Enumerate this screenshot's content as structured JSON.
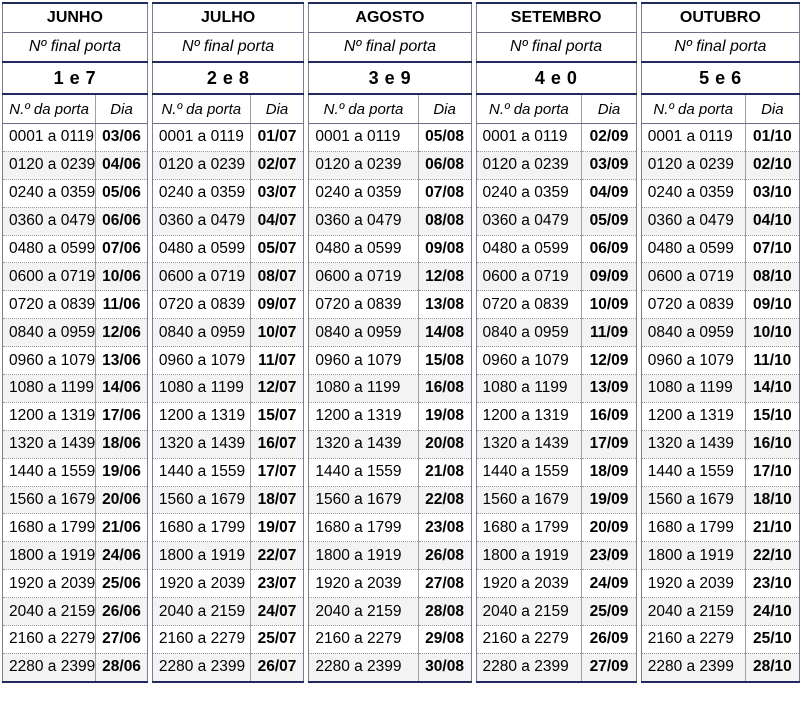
{
  "range_header": "N.º da porta",
  "day_header": "Dia",
  "final_label": "Nº final porta",
  "ranges": [
    "0001 a 0119",
    "0120 a 0239",
    "0240 a 0359",
    "0360 a 0479",
    "0480 a 0599",
    "0600 a 0719",
    "0720 a 0839",
    "0840 a 0959",
    "0960 a 1079",
    "1080 a 1199",
    "1200 a 1319",
    "1320 a 1439",
    "1440 a 1559",
    "1560 a 1679",
    "1680 a 1799",
    "1800 a 1919",
    "1920 a 2039",
    "2040 a 2159",
    "2160 a 2279",
    "2280 a 2399"
  ],
  "months": [
    {
      "name": "JUNHO",
      "final": "1 e 7",
      "days": [
        "03/06",
        "04/06",
        "05/06",
        "06/06",
        "07/06",
        "10/06",
        "11/06",
        "12/06",
        "13/06",
        "14/06",
        "17/06",
        "18/06",
        "19/06",
        "20/06",
        "21/06",
        "24/06",
        "25/06",
        "26/06",
        "27/06",
        "28/06"
      ]
    },
    {
      "name": "JULHO",
      "final": "2 e 8",
      "days": [
        "01/07",
        "02/07",
        "03/07",
        "04/07",
        "05/07",
        "08/07",
        "09/07",
        "10/07",
        "11/07",
        "12/07",
        "15/07",
        "16/07",
        "17/07",
        "18/07",
        "19/07",
        "22/07",
        "23/07",
        "24/07",
        "25/07",
        "26/07"
      ]
    },
    {
      "name": "AGOSTO",
      "final": "3 e 9",
      "days": [
        "05/08",
        "06/08",
        "07/08",
        "08/08",
        "09/08",
        "12/08",
        "13/08",
        "14/08",
        "15/08",
        "16/08",
        "19/08",
        "20/08",
        "21/08",
        "22/08",
        "23/08",
        "26/08",
        "27/08",
        "28/08",
        "29/08",
        "30/08"
      ]
    },
    {
      "name": "SETEMBRO",
      "final": "4 e 0",
      "days": [
        "02/09",
        "03/09",
        "04/09",
        "05/09",
        "06/09",
        "09/09",
        "10/09",
        "11/09",
        "12/09",
        "13/09",
        "16/09",
        "17/09",
        "18/09",
        "19/09",
        "20/09",
        "23/09",
        "24/09",
        "25/09",
        "26/09",
        "27/09"
      ]
    },
    {
      "name": "OUTUBRO",
      "final": "5 e 6",
      "days": [
        "01/10",
        "02/10",
        "03/10",
        "04/10",
        "07/10",
        "08/10",
        "09/10",
        "10/10",
        "11/10",
        "14/10",
        "15/10",
        "16/10",
        "17/10",
        "18/10",
        "21/10",
        "22/10",
        "23/10",
        "24/10",
        "25/10",
        "28/10"
      ]
    }
  ]
}
